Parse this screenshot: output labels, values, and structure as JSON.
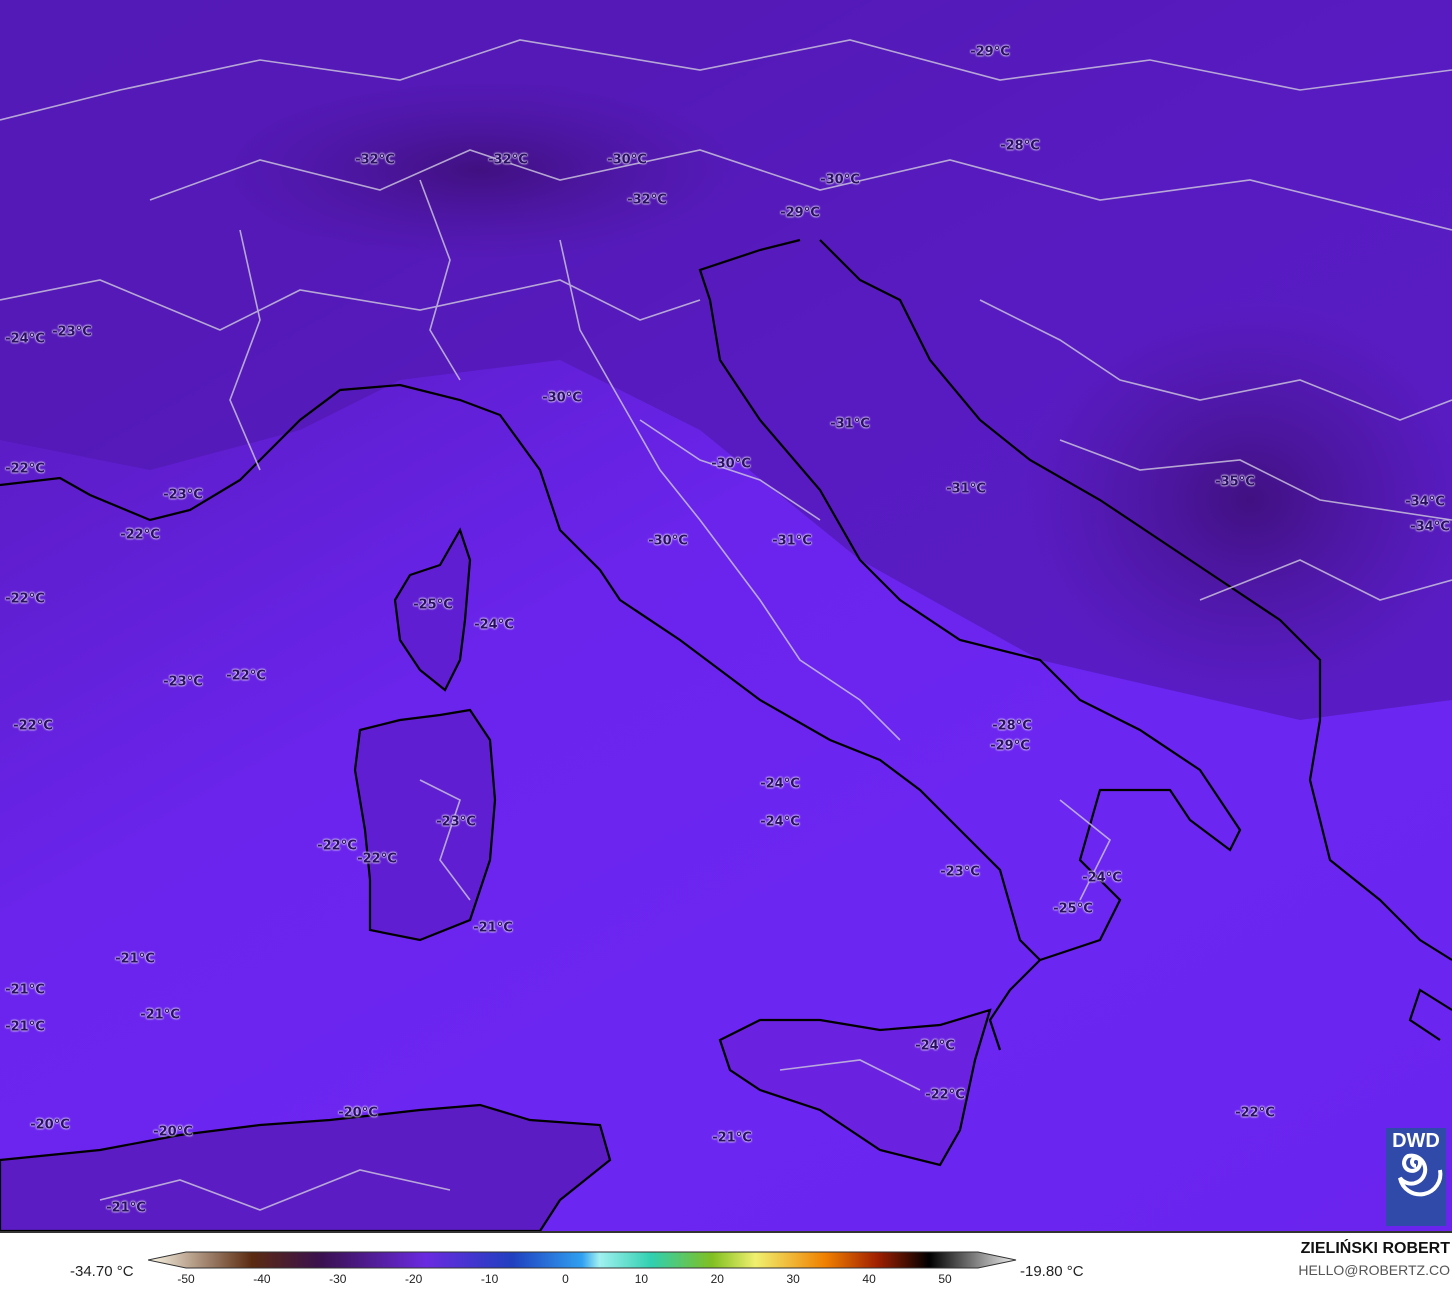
{
  "map": {
    "field": "temperature",
    "colors": {
      "sea": "#6c26f2",
      "land_north": "#4e1aa8",
      "cold_core": "#3f1080"
    },
    "labels": [
      "-29°C",
      "-32°C",
      "-32°C",
      "-30°C",
      "-32°C",
      "-28°C",
      "-30°C",
      "-29°C",
      "-24°C",
      "-23°C",
      "-30°C",
      "-31°C",
      "-30°C",
      "-31°C",
      "-35°C",
      "-34°C",
      "-34°C",
      "-22°C",
      "-23°C",
      "-22°C",
      "-30°C",
      "-31°C",
      "-22°C",
      "-25°C",
      "-24°C",
      "-23°C",
      "-22°C",
      "-22°C",
      "-28°C",
      "-29°C",
      "-24°C",
      "-24°C",
      "-23°C",
      "-22°C",
      "-22°C",
      "-23°C",
      "-24°C",
      "-25°C",
      "-21°C",
      "-21°C",
      "-21°C",
      "-21°C",
      "-21°C",
      "-24°C",
      "-22°C",
      "-22°C",
      "-20°C",
      "-20°C",
      "-20°C",
      "-21°C",
      "-21°C"
    ]
  },
  "logo": {
    "text": "DWD"
  },
  "legend": {
    "min_value": "-34.70 °C",
    "max_value": "-19.80 °C",
    "ticks": [
      "-50",
      "-40",
      "-30",
      "-20",
      "-10",
      "0",
      "10",
      "20",
      "30",
      "40",
      "50"
    ],
    "range": [
      -50,
      55
    ]
  },
  "credit": {
    "author": "ZIELIŃSKI ROBERT",
    "email": "HELLO@ROBERTZ.CO"
  }
}
